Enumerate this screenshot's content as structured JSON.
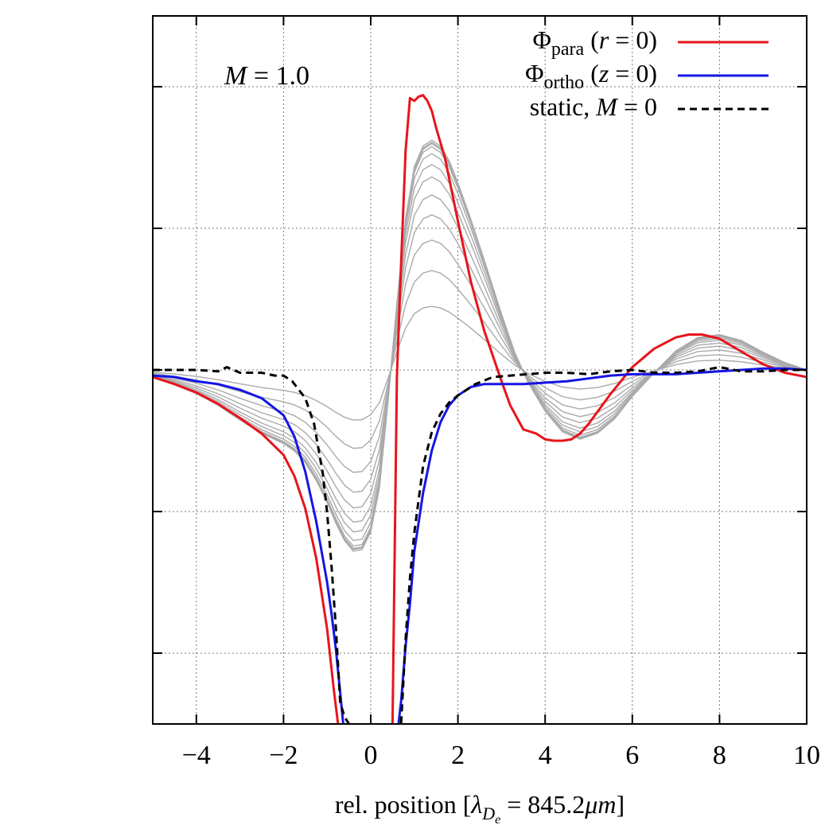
{
  "chart_data": {
    "type": "line",
    "xlabel": "rel. position [λ_De = 845.2μm]",
    "xlabel_parts": {
      "pre": "rel. position [",
      "sym": "λ",
      "sub": "D",
      "subsub": "e",
      "eq": " = 845.2",
      "unit": "μm",
      "post": "]"
    },
    "xlim": [
      -5,
      10
    ],
    "ylim": [
      -2.5,
      2.5
    ],
    "xticks": [
      -4,
      -2,
      0,
      2,
      4,
      6,
      8,
      10
    ],
    "xtick_labels": [
      "−4",
      "−2",
      "0",
      "2",
      "4",
      "6",
      "8",
      "10"
    ],
    "yticks": [
      -2,
      -1,
      0,
      1,
      2
    ],
    "ylabel": "",
    "grid": true,
    "legend_position": "top-right",
    "annotation": {
      "var": "M",
      "rest": " = 1.0"
    },
    "legend": [
      {
        "sym": "Φ",
        "sub": "para",
        "cond_open": " (",
        "cond_var": "r",
        "cond_rest": " = 0)",
        "color": "#e8141b",
        "dash": "solid"
      },
      {
        "sym": "Φ",
        "sub": "ortho",
        "cond_open": " (",
        "cond_var": "z",
        "cond_rest": " = 0)",
        "color": "#1515e6",
        "dash": "solid"
      },
      {
        "sym": "static, ",
        "sub": "",
        "cond_open": "",
        "cond_var": "M",
        "cond_rest": " = 0",
        "color": "#000000",
        "dash": "dashed"
      }
    ],
    "series": [
      {
        "name": "Φpara (r = 0)",
        "color": "#e8141b",
        "x": [
          -5,
          -4.5,
          -4,
          -3.5,
          -3,
          -2.5,
          -2,
          -1.75,
          -1.5,
          -1.25,
          -1.0,
          -0.85,
          -0.75,
          -0.6,
          0.4,
          0.5,
          0.6,
          0.7,
          0.8,
          0.9,
          1.0,
          1.1,
          1.2,
          1.3,
          1.4,
          1.5,
          1.7,
          2.0,
          2.3,
          2.6,
          3.0,
          3.2,
          3.5,
          3.8,
          4.0,
          4.2,
          4.4,
          4.6,
          4.8,
          5.0,
          5.5,
          6.0,
          6.5,
          7.0,
          7.3,
          7.6,
          8.0,
          8.5,
          9.0,
          9.5,
          10.0
        ],
        "y": [
          -0.05,
          -0.1,
          -0.16,
          -0.24,
          -0.34,
          -0.45,
          -0.6,
          -0.75,
          -0.98,
          -1.33,
          -1.83,
          -2.25,
          -2.5,
          -2.6,
          -2.6,
          -2.5,
          -0.05,
          0.78,
          1.55,
          1.92,
          1.9,
          1.93,
          1.94,
          1.9,
          1.83,
          1.71,
          1.5,
          1.05,
          0.62,
          0.28,
          -0.08,
          -0.25,
          -0.42,
          -0.45,
          -0.49,
          -0.5,
          -0.5,
          -0.49,
          -0.45,
          -0.38,
          -0.17,
          0.02,
          0.15,
          0.23,
          0.25,
          0.25,
          0.22,
          0.13,
          0.04,
          -0.02,
          -0.05
        ]
      },
      {
        "name": "Φortho (z = 0)",
        "color": "#1515e6",
        "x": [
          -5,
          -4.5,
          -4,
          -3.5,
          -3,
          -2.5,
          -2,
          -1.75,
          -1.5,
          -1.25,
          -1.0,
          -0.9,
          -0.8,
          -0.7,
          -0.6,
          0.6,
          0.7,
          0.8,
          0.9,
          1.0,
          1.2,
          1.4,
          1.6,
          1.8,
          2.0,
          2.3,
          2.6,
          3.0,
          3.5,
          4.0,
          4.5,
          5.0,
          5.5,
          6.0,
          6.5,
          7.0,
          7.5,
          8.0,
          8.5,
          9.0,
          9.5,
          10.0
        ],
        "y": [
          -0.04,
          -0.05,
          -0.08,
          -0.1,
          -0.14,
          -0.2,
          -0.32,
          -0.47,
          -0.72,
          -1.07,
          -1.5,
          -1.72,
          -1.97,
          -2.28,
          -2.6,
          -2.6,
          -2.33,
          -1.95,
          -1.65,
          -1.28,
          -0.87,
          -0.57,
          -0.37,
          -0.25,
          -0.18,
          -0.12,
          -0.1,
          -0.1,
          -0.1,
          -0.09,
          -0.08,
          -0.06,
          -0.04,
          -0.03,
          -0.03,
          -0.03,
          -0.02,
          -0.01,
          0.0,
          0.01,
          0.01,
          0.0
        ]
      },
      {
        "name": "static, M = 0",
        "color": "#000000",
        "dash": "dashed",
        "x": [
          -5,
          -4.5,
          -4,
          -3.5,
          -3.3,
          -3.0,
          -2.5,
          -2.2,
          -2.0,
          -1.8,
          -1.5,
          -1.3,
          -1.1,
          -1.0,
          -0.9,
          -0.8,
          -0.7,
          -0.6,
          -0.5,
          -0.45,
          0.65,
          0.7,
          0.8,
          0.9,
          1.0,
          1.2,
          1.4,
          1.6,
          1.8,
          2.0,
          2.4,
          2.8,
          3.2,
          3.6,
          4.0,
          4.5,
          5.0,
          5.5,
          6.0,
          6.5,
          7.0,
          7.5,
          8.0,
          8.5,
          9.0,
          9.5,
          10.0
        ],
        "y": [
          0.0,
          0.0,
          0.0,
          -0.01,
          0.02,
          -0.02,
          -0.02,
          -0.04,
          -0.04,
          -0.08,
          -0.2,
          -0.38,
          -0.73,
          -1.01,
          -1.38,
          -1.82,
          -2.35,
          -2.45,
          -2.5,
          -2.6,
          -2.6,
          -2.48,
          -1.9,
          -1.47,
          -1.15,
          -0.68,
          -0.44,
          -0.31,
          -0.23,
          -0.18,
          -0.1,
          -0.05,
          -0.04,
          -0.03,
          -0.02,
          -0.02,
          -0.03,
          -0.01,
          0.0,
          -0.02,
          -0.02,
          -0.01,
          0.02,
          -0.01,
          -0.01,
          0.0,
          0.0
        ]
      }
    ],
    "gray_curves": {
      "color": "#aaaaaa",
      "count": 12,
      "x": [
        -5,
        -4.5,
        -4,
        -3.5,
        -3,
        -2.5,
        -2,
        -1.75,
        -1.5,
        -1.25,
        -1.0,
        -0.8,
        -0.6,
        -0.4,
        -0.2,
        0.0,
        0.2,
        0.4,
        0.6,
        0.8,
        1.0,
        1.2,
        1.4,
        1.6,
        1.8,
        2.0,
        2.3,
        2.6,
        3.0,
        3.3,
        3.6,
        4.0,
        4.4,
        4.8,
        5.2,
        5.6,
        6.0,
        6.5,
        7.0,
        7.5,
        8.0,
        8.5,
        9.0,
        9.5,
        10.0
      ],
      "shape": [
        -0.05,
        -0.1,
        -0.16,
        -0.24,
        -0.34,
        -0.43,
        -0.5,
        -0.55,
        -0.63,
        -0.75,
        -0.9,
        -1.04,
        -1.16,
        -1.23,
        -1.22,
        -1.1,
        -0.8,
        -0.2,
        0.45,
        1.03,
        1.38,
        1.52,
        1.56,
        1.52,
        1.42,
        1.27,
        1.02,
        0.75,
        0.38,
        0.12,
        -0.08,
        -0.28,
        -0.42,
        -0.47,
        -0.43,
        -0.33,
        -0.18,
        -0.02,
        0.13,
        0.22,
        0.24,
        0.2,
        0.12,
        0.05,
        0.0
      ],
      "levels": [
        0.12,
        0.2,
        0.28,
        0.36,
        0.44,
        0.52,
        0.6,
        0.68,
        0.76,
        0.84,
        0.92,
        1.0
      ],
      "width_scale": [
        2.4,
        2.25,
        2.1,
        1.95,
        1.8,
        1.68,
        1.55,
        1.44,
        1.33,
        1.22,
        1.12,
        1.04
      ]
    }
  }
}
